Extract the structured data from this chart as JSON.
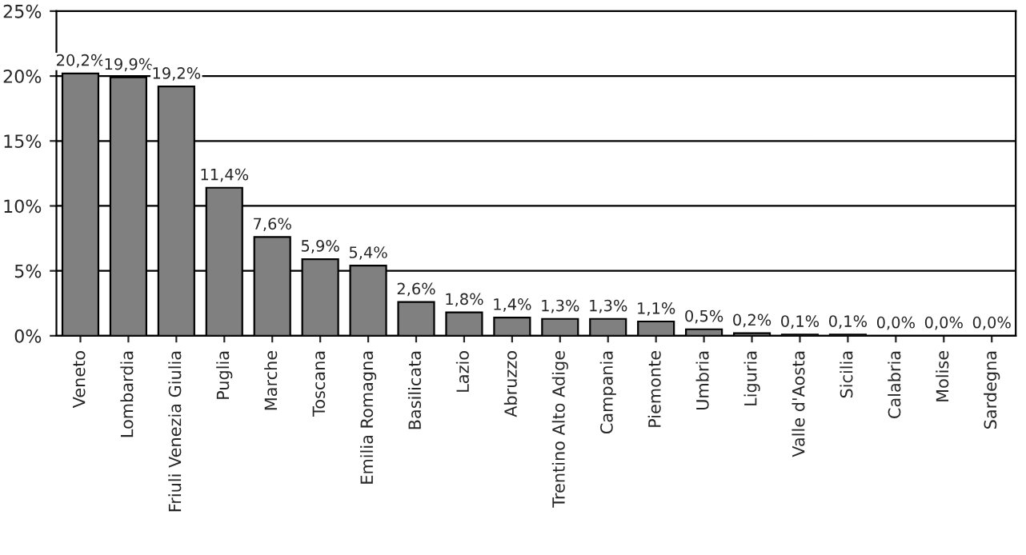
{
  "chart_data": {
    "type": "bar",
    "categories": [
      "Veneto",
      "Lombardia",
      "Friuli Venezia Giulia",
      "Puglia",
      "Marche",
      "Toscana",
      "Emilia Romagna",
      "Basilicata",
      "Lazio",
      "Abruzzo",
      "Trentino Alto Adige",
      "Campania",
      "Piemonte",
      "Umbria",
      "Liguria",
      "Valle d'Aosta",
      "Sicilia",
      "Calabria",
      "Molise",
      "Sardegna"
    ],
    "values": [
      20.2,
      19.9,
      19.2,
      11.4,
      7.6,
      5.9,
      5.4,
      2.6,
      1.8,
      1.4,
      1.3,
      1.3,
      1.1,
      0.5,
      0.2,
      0.1,
      0.1,
      0.0,
      0.0,
      0.0
    ],
    "value_labels": [
      "20,2%",
      "19,9%",
      "19,2%",
      "11,4%",
      "7,6%",
      "5,9%",
      "5,4%",
      "2,6%",
      "1,8%",
      "1,4%",
      "1,3%",
      "1,3%",
      "1,1%",
      "0,5%",
      "0,2%",
      "0,1%",
      "0,1%",
      "0,0%",
      "0,0%",
      "0,0%"
    ],
    "color": "#808080",
    "ylim": [
      0,
      25
    ],
    "yticks": [
      {
        "value": 0,
        "label": "0%"
      },
      {
        "value": 5,
        "label": "5%"
      },
      {
        "value": 10,
        "label": "10%"
      },
      {
        "value": 15,
        "label": "15%"
      },
      {
        "value": 20,
        "label": "20%"
      },
      {
        "value": 25,
        "label": "25%"
      }
    ],
    "grid": "y"
  }
}
